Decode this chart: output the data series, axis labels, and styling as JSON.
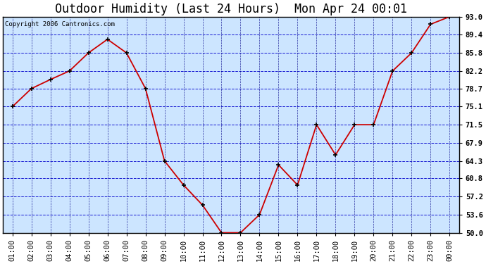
{
  "title": "Outdoor Humidity (Last 24 Hours)  Mon Apr 24 00:01",
  "copyright": "Copyright 2006 Cantronics.com",
  "x_labels": [
    "01:00",
    "02:00",
    "03:00",
    "04:00",
    "05:00",
    "06:00",
    "07:00",
    "08:00",
    "09:00",
    "10:00",
    "11:00",
    "12:00",
    "13:00",
    "14:00",
    "15:00",
    "16:00",
    "17:00",
    "18:00",
    "19:00",
    "20:00",
    "21:00",
    "22:00",
    "23:00",
    "00:00"
  ],
  "x_values": [
    1,
    2,
    3,
    4,
    5,
    6,
    7,
    8,
    9,
    10,
    11,
    12,
    13,
    14,
    15,
    16,
    17,
    18,
    19,
    20,
    21,
    22,
    23,
    24
  ],
  "y_values": [
    75.1,
    78.7,
    80.5,
    82.2,
    85.8,
    88.5,
    85.8,
    78.7,
    64.3,
    59.5,
    55.5,
    50.0,
    50.0,
    53.6,
    63.5,
    59.5,
    71.5,
    65.5,
    71.5,
    71.5,
    82.2,
    85.8,
    91.5,
    93.0
  ],
  "y_ticks": [
    50.0,
    53.6,
    57.2,
    60.8,
    64.3,
    67.9,
    71.5,
    75.1,
    78.7,
    82.2,
    85.8,
    89.4,
    93.0
  ],
  "ylim": [
    50.0,
    93.0
  ],
  "xlim": [
    0.5,
    24.5
  ],
  "line_color": "#cc0000",
  "marker_color": "#000000",
  "bg_color": "#cce5ff",
  "outer_bg": "#ffffff",
  "grid_color_h": "#0000cc",
  "grid_color_v": "#000088",
  "title_fontsize": 12,
  "tick_fontsize": 7.5,
  "copyright_fontsize": 6.5
}
